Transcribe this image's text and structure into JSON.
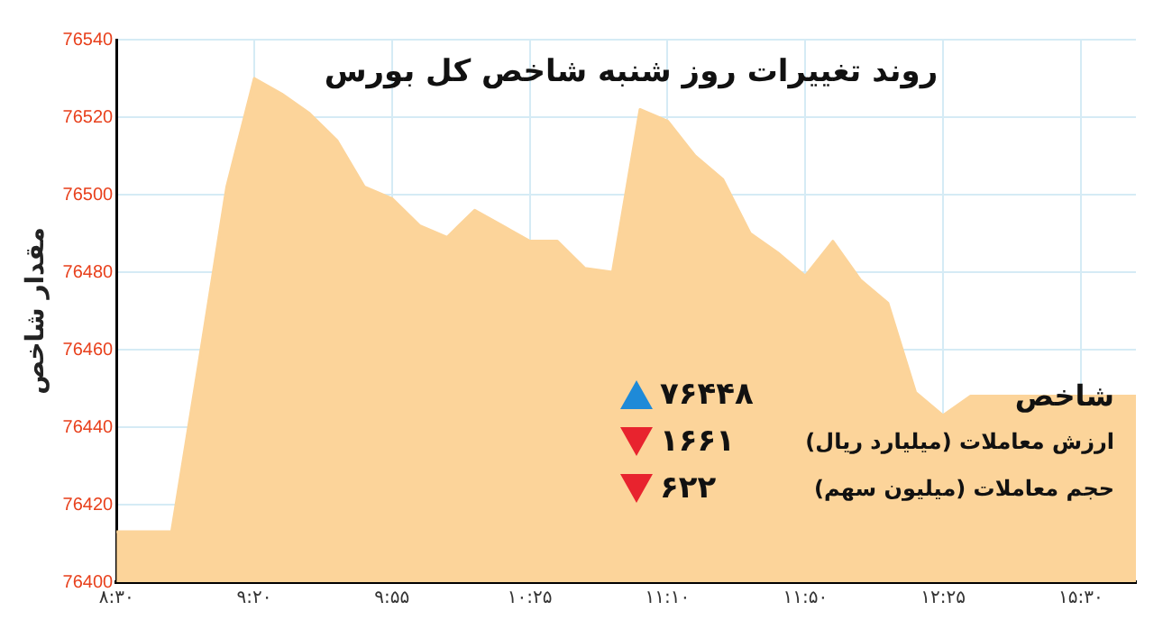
{
  "chart_data": {
    "type": "area",
    "title": "روند تغییرات روز شنبه شاخص کل بورس",
    "ylabel": "مقدار شاخص",
    "categories": [
      "۸:۳۰",
      null,
      null,
      null,
      null,
      "۹:۲۰",
      null,
      null,
      null,
      null,
      "۹:۵۵",
      null,
      null,
      null,
      null,
      "۱۰:۲۵",
      null,
      null,
      null,
      null,
      "۱۱:۱۰",
      null,
      null,
      null,
      null,
      "۱۱:۵۰",
      null,
      null,
      null,
      null,
      "۱۲:۲۵",
      null,
      null,
      null,
      null,
      "۱۵:۳۰",
      null,
      null
    ],
    "series": [
      {
        "color": "#fcd49a",
        "values": [
          76413,
          76413,
          76413,
          76457,
          76502,
          76530,
          76526,
          76521,
          76514,
          76502,
          76499,
          76492,
          76489,
          76496,
          76492,
          76488,
          76488,
          76481,
          76480,
          76522,
          76519,
          76510,
          76504,
          76490,
          76485,
          76479,
          76488,
          76478,
          76472,
          76449,
          76443,
          76448,
          76448,
          76448,
          76448,
          76448,
          76448,
          76448
        ]
      }
    ],
    "ylim": [
      76400,
      76540
    ],
    "yticks": [
      76400,
      76420,
      76440,
      76460,
      76480,
      76500,
      76520,
      76540
    ],
    "grid": true,
    "annotations": [
      "شاخص",
      "۷۶۴۴۸",
      "ارزش معاملات (میلیارد ریال)",
      "۱۶۶۱",
      "حجم معاملات (میلیون سهم)",
      "۶۲۲"
    ]
  }
}
